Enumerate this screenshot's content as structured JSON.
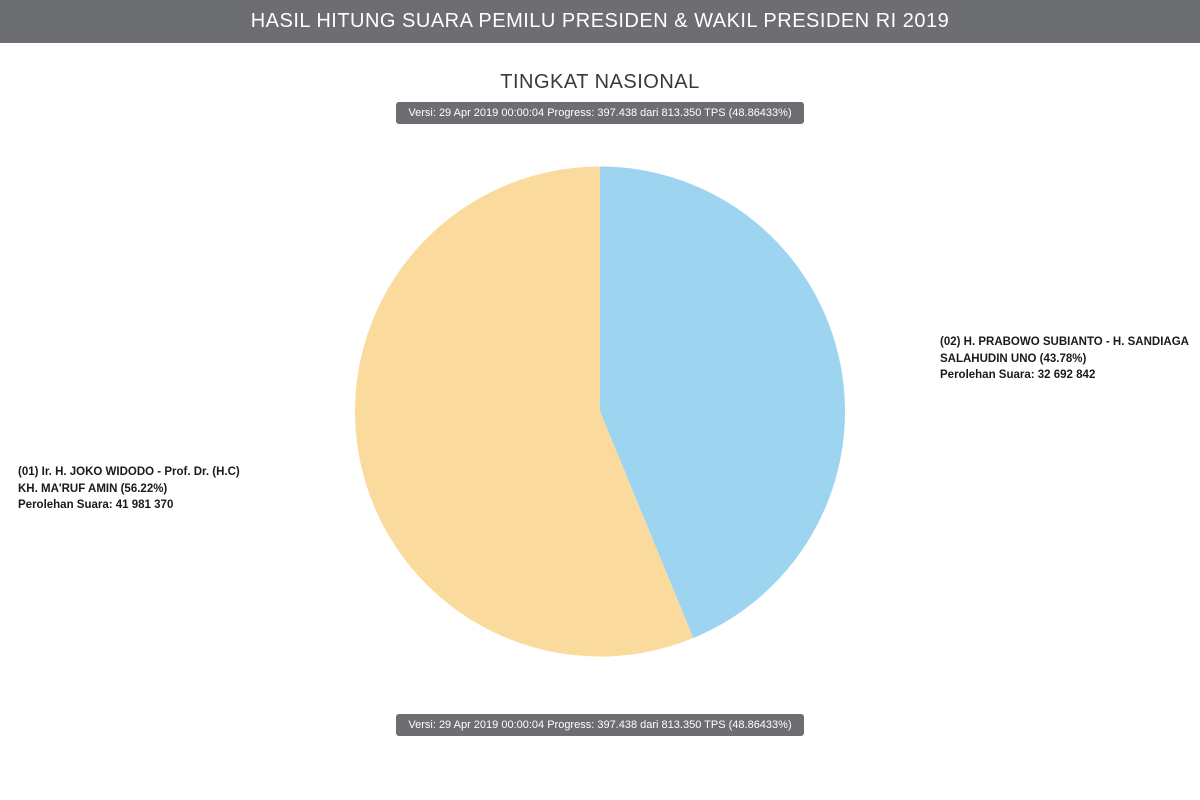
{
  "header": {
    "title": "HASIL HITUNG SUARA PEMILU PRESIDEN & WAKIL PRESIDEN RI 2019"
  },
  "subtitle": "TINGKAT NASIONAL",
  "version_text": "Versi: 29 Apr 2019 00:00:04 Progress: 397.438 dari 813.350 TPS (48.86433%)",
  "chart": {
    "type": "pie",
    "radius": 245,
    "background_color": "#ffffff",
    "slices": [
      {
        "id": "candidate-01",
        "percent": 56.22,
        "color": "#fbdb9d",
        "label_lines": [
          "(01) Ir. H. JOKO WIDODO - Prof. Dr. (H.C)",
          "KH. MA'RUF AMIN (56.22%)",
          "Perolehan Suara: 41 981 370"
        ]
      },
      {
        "id": "candidate-02",
        "percent": 43.78,
        "color": "#9dd5f0",
        "label_lines": [
          "(02) H. PRABOWO SUBIANTO - H. SANDIAGA",
          "SALAHUDIN UNO (43.78%)",
          "Perolehan Suara: 32 692 842"
        ]
      }
    ],
    "label_fontsize": 11.5,
    "label_fontweight": 700,
    "label_color": "#1a1a1a"
  },
  "badge": {
    "bg_color": "#6d6e71",
    "text_color": "#ffffff",
    "fontsize": 11
  },
  "header_style": {
    "bg_color": "#6d6e71",
    "text_color": "#ffffff",
    "fontsize": 20
  }
}
